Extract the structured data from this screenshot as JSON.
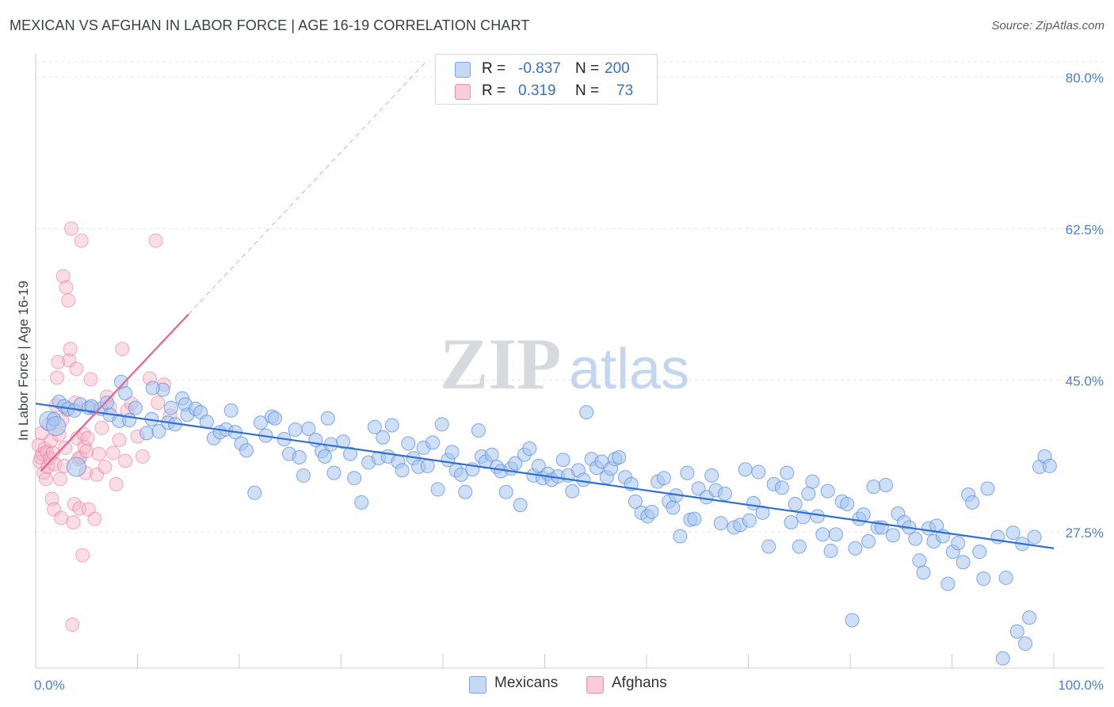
{
  "header": {
    "title": "MEXICAN VS AFGHAN IN LABOR FORCE | AGE 16-19 CORRELATION CHART",
    "source": "Source: ZipAtlas.com"
  },
  "watermark": {
    "zip": "ZIP",
    "atlas": "atlas"
  },
  "legend": {
    "rows": [
      {
        "r_label": "R =",
        "r_value": "-0.837",
        "n_label": "N =",
        "n_value": "200",
        "color": "#a8c4ee"
      },
      {
        "r_label": "R =",
        "r_value": "0.319",
        "n_label": "N =",
        "n_value": "73",
        "color": "#f5b6c8"
      }
    ]
  },
  "bottom_legend": [
    {
      "label": "Mexicans",
      "color": "#a8c4ee"
    },
    {
      "label": "Afghans",
      "color": "#f5b6c8"
    }
  ],
  "chart_data": {
    "type": "scatter",
    "title": "MEXICAN VS AFGHAN IN LABOR FORCE | AGE 16-19 CORRELATION CHART",
    "xlabel": "",
    "ylabel": "In Labor Force | Age 16-19",
    "xlim": [
      0,
      100
    ],
    "ylim": [
      10,
      85
    ],
    "x_tick_labels": [
      "0.0%",
      "100.0%"
    ],
    "y_ticks": [
      27.5,
      45.0,
      62.5,
      80.0
    ],
    "y_tick_labels": [
      "27.5%",
      "45.0%",
      "62.5%",
      "80.0%"
    ],
    "grid": "horizontal dashed",
    "legend_position": "top-center",
    "colors": {
      "mexicans": "#5b8fe0",
      "mexicans_fill": "#a8c4ee",
      "afghans": "#ec6d97",
      "afghans_fill": "#f5b6c8"
    },
    "series": [
      {
        "name": "Mexicans",
        "trend": {
          "x": [
            0,
            100
          ],
          "y": [
            42.3,
            25.6
          ]
        },
        "points": [
          [
            1.3,
            40.3
          ],
          [
            1.8,
            40.5
          ],
          [
            2.3,
            42.5
          ],
          [
            2.8,
            42.0
          ],
          [
            3.2,
            41.7
          ],
          [
            3.8,
            41.5
          ],
          [
            4.4,
            42.2
          ],
          [
            5.2,
            41.8
          ],
          [
            6.4,
            41.7
          ],
          [
            7.0,
            42.4
          ],
          [
            7.3,
            41.0
          ],
          [
            8.2,
            40.3
          ],
          [
            8.4,
            44.8
          ],
          [
            8.8,
            43.5
          ],
          [
            9.2,
            40.4
          ],
          [
            9.8,
            41.8
          ],
          [
            10.9,
            38.9
          ],
          [
            11.4,
            40.5
          ],
          [
            12.1,
            39.1
          ],
          [
            12.5,
            43.9
          ],
          [
            13.0,
            40.1
          ],
          [
            13.3,
            41.8
          ],
          [
            13.7,
            39.9
          ],
          [
            14.4,
            42.9
          ],
          [
            14.7,
            42.2
          ],
          [
            14.9,
            41.0
          ],
          [
            15.7,
            41.7
          ],
          [
            16.2,
            41.3
          ],
          [
            16.8,
            40.2
          ],
          [
            17.5,
            38.3
          ],
          [
            18.1,
            39.0
          ],
          [
            18.7,
            39.3
          ],
          [
            19.2,
            41.5
          ],
          [
            19.6,
            39.0
          ],
          [
            20.2,
            37.7
          ],
          [
            20.7,
            36.9
          ],
          [
            21.5,
            32.0
          ],
          [
            22.1,
            40.1
          ],
          [
            22.6,
            38.6
          ],
          [
            23.2,
            40.8
          ],
          [
            23.5,
            40.6
          ],
          [
            24.4,
            38.2
          ],
          [
            24.9,
            36.5
          ],
          [
            25.5,
            39.3
          ],
          [
            25.9,
            36.1
          ],
          [
            26.3,
            34.0
          ],
          [
            26.8,
            39.4
          ],
          [
            27.5,
            38.1
          ],
          [
            28.1,
            36.8
          ],
          [
            28.4,
            36.2
          ],
          [
            28.7,
            40.6
          ],
          [
            29.0,
            37.6
          ],
          [
            29.3,
            34.3
          ],
          [
            30.2,
            37.9
          ],
          [
            30.9,
            36.5
          ],
          [
            31.3,
            33.7
          ],
          [
            32.0,
            30.9
          ],
          [
            32.7,
            35.5
          ],
          [
            33.3,
            39.6
          ],
          [
            33.7,
            36.0
          ],
          [
            34.1,
            38.4
          ],
          [
            34.6,
            36.2
          ],
          [
            35.0,
            39.8
          ],
          [
            35.6,
            35.6
          ],
          [
            36.0,
            34.6
          ],
          [
            36.6,
            37.7
          ],
          [
            37.1,
            36.0
          ],
          [
            37.6,
            35.0
          ],
          [
            38.1,
            37.2
          ],
          [
            38.5,
            35.1
          ],
          [
            39.0,
            37.8
          ],
          [
            39.5,
            32.4
          ],
          [
            39.9,
            39.9
          ],
          [
            40.5,
            35.8
          ],
          [
            40.9,
            36.7
          ],
          [
            41.3,
            34.6
          ],
          [
            41.8,
            34.1
          ],
          [
            42.2,
            32.1
          ],
          [
            42.9,
            34.7
          ],
          [
            43.5,
            39.2
          ],
          [
            43.8,
            36.2
          ],
          [
            44.2,
            35.6
          ],
          [
            44.8,
            36.4
          ],
          [
            45.3,
            35.0
          ],
          [
            45.7,
            34.5
          ],
          [
            46.2,
            32.1
          ],
          [
            46.7,
            34.8
          ],
          [
            47.1,
            35.4
          ],
          [
            47.6,
            30.6
          ],
          [
            48.0,
            36.4
          ],
          [
            48.5,
            37.1
          ],
          [
            48.9,
            34.0
          ],
          [
            49.4,
            35.1
          ],
          [
            49.8,
            33.7
          ],
          [
            50.3,
            34.2
          ],
          [
            50.7,
            33.5
          ],
          [
            51.3,
            33.9
          ],
          [
            51.8,
            35.8
          ],
          [
            52.3,
            34.0
          ],
          [
            52.7,
            32.2
          ],
          [
            53.3,
            34.6
          ],
          [
            53.8,
            33.5
          ],
          [
            54.1,
            41.3
          ],
          [
            54.6,
            35.9
          ],
          [
            55.1,
            34.9
          ],
          [
            55.6,
            35.6
          ],
          [
            56.1,
            33.8
          ],
          [
            56.5,
            34.8
          ],
          [
            56.9,
            35.9
          ],
          [
            57.3,
            36.1
          ],
          [
            57.9,
            33.8
          ],
          [
            58.5,
            33.0
          ],
          [
            58.9,
            31.0
          ],
          [
            59.5,
            29.7
          ],
          [
            60.1,
            29.3
          ],
          [
            60.5,
            29.8
          ],
          [
            61.1,
            33.3
          ],
          [
            61.7,
            33.7
          ],
          [
            62.2,
            31.0
          ],
          [
            62.6,
            30.3
          ],
          [
            62.9,
            31.7
          ],
          [
            63.3,
            27.0
          ],
          [
            64.0,
            34.3
          ],
          [
            64.3,
            28.9
          ],
          [
            64.7,
            29.0
          ],
          [
            65.1,
            32.5
          ],
          [
            65.9,
            31.5
          ],
          [
            66.4,
            34.0
          ],
          [
            66.8,
            32.3
          ],
          [
            67.3,
            28.5
          ],
          [
            67.7,
            31.9
          ],
          [
            68.6,
            28.0
          ],
          [
            69.2,
            28.3
          ],
          [
            69.7,
            34.7
          ],
          [
            70.1,
            28.8
          ],
          [
            70.5,
            30.8
          ],
          [
            71.0,
            34.4
          ],
          [
            71.4,
            29.7
          ],
          [
            72.0,
            25.8
          ],
          [
            72.5,
            33.0
          ],
          [
            73.3,
            32.6
          ],
          [
            73.8,
            34.3
          ],
          [
            74.2,
            28.6
          ],
          [
            74.6,
            30.7
          ],
          [
            75.0,
            25.8
          ],
          [
            75.4,
            29.2
          ],
          [
            75.9,
            31.9
          ],
          [
            76.3,
            33.3
          ],
          [
            76.8,
            29.3
          ],
          [
            77.3,
            27.2
          ],
          [
            77.8,
            32.2
          ],
          [
            78.1,
            25.3
          ],
          [
            78.6,
            27.2
          ],
          [
            79.2,
            31.0
          ],
          [
            79.7,
            30.7
          ],
          [
            80.2,
            17.3
          ],
          [
            80.5,
            25.6
          ],
          [
            80.9,
            29.0
          ],
          [
            81.3,
            29.5
          ],
          [
            81.8,
            26.4
          ],
          [
            82.3,
            32.7
          ],
          [
            82.7,
            28.0
          ],
          [
            83.1,
            28.0
          ],
          [
            83.5,
            32.9
          ],
          [
            84.2,
            27.1
          ],
          [
            84.7,
            29.6
          ],
          [
            85.3,
            28.6
          ],
          [
            85.8,
            28.0
          ],
          [
            86.4,
            26.7
          ],
          [
            86.8,
            24.2
          ],
          [
            87.2,
            22.8
          ],
          [
            87.7,
            27.9
          ],
          [
            88.2,
            26.4
          ],
          [
            88.5,
            28.2
          ],
          [
            89.1,
            27.0
          ],
          [
            89.6,
            21.5
          ],
          [
            90.1,
            25.2
          ],
          [
            90.6,
            26.2
          ],
          [
            91.1,
            24.0
          ],
          [
            91.6,
            31.8
          ],
          [
            92.0,
            30.9
          ],
          [
            92.7,
            25.2
          ],
          [
            93.1,
            22.1
          ],
          [
            93.5,
            32.5
          ],
          [
            94.5,
            26.9
          ],
          [
            95.0,
            12.9
          ],
          [
            95.3,
            22.2
          ],
          [
            96.0,
            27.4
          ],
          [
            96.4,
            16.0
          ],
          [
            96.9,
            26.1
          ],
          [
            97.2,
            14.6
          ],
          [
            97.6,
            17.6
          ],
          [
            98.1,
            26.9
          ],
          [
            98.6,
            35.0
          ],
          [
            99.1,
            36.2
          ],
          [
            99.6,
            35.1
          ],
          [
            4.0,
            35.0
          ],
          [
            2.0,
            39.7
          ],
          [
            11.5,
            44.1
          ],
          [
            5.5,
            42.0
          ]
        ]
      },
      {
        "name": "Afghans",
        "trend": {
          "x": [
            0.5,
            15.0
          ],
          "y": [
            34.5,
            52.6
          ]
        },
        "points": [
          [
            0.3,
            37.5
          ],
          [
            0.4,
            35.6
          ],
          [
            0.5,
            36.1
          ],
          [
            0.6,
            38.9
          ],
          [
            0.7,
            36.5
          ],
          [
            0.8,
            34.3
          ],
          [
            0.9,
            37.1
          ],
          [
            1.0,
            33.6
          ],
          [
            1.1,
            36.7
          ],
          [
            1.2,
            35.0
          ],
          [
            1.3,
            39.9
          ],
          [
            1.4,
            36.0
          ],
          [
            1.5,
            38.0
          ],
          [
            1.6,
            31.3
          ],
          [
            1.7,
            36.6
          ],
          [
            1.8,
            30.1
          ],
          [
            1.9,
            35.3
          ],
          [
            2.0,
            42.1
          ],
          [
            2.1,
            45.3
          ],
          [
            2.2,
            47.1
          ],
          [
            2.3,
            38.7
          ],
          [
            2.4,
            33.6
          ],
          [
            2.5,
            29.1
          ],
          [
            2.6,
            40.4
          ],
          [
            2.7,
            57.0
          ],
          [
            2.8,
            35.1
          ],
          [
            2.9,
            37.2
          ],
          [
            3.0,
            55.7
          ],
          [
            3.1,
            41.6
          ],
          [
            3.2,
            54.2
          ],
          [
            3.3,
            47.3
          ],
          [
            3.4,
            48.6
          ],
          [
            3.5,
            62.5
          ],
          [
            3.6,
            16.8
          ],
          [
            3.7,
            28.6
          ],
          [
            3.8,
            30.7
          ],
          [
            3.9,
            42.4
          ],
          [
            4.0,
            46.3
          ],
          [
            4.1,
            38.3
          ],
          [
            4.2,
            35.9
          ],
          [
            4.3,
            30.2
          ],
          [
            4.4,
            36.1
          ],
          [
            4.5,
            61.1
          ],
          [
            4.6,
            24.8
          ],
          [
            4.7,
            38.8
          ],
          [
            4.8,
            37.3
          ],
          [
            4.9,
            34.3
          ],
          [
            5.0,
            36.8
          ],
          [
            5.1,
            38.3
          ],
          [
            5.2,
            30.1
          ],
          [
            5.4,
            45.1
          ],
          [
            5.6,
            41.8
          ],
          [
            5.8,
            29.0
          ],
          [
            6.0,
            34.1
          ],
          [
            6.2,
            36.5
          ],
          [
            6.5,
            39.5
          ],
          [
            6.8,
            35.0
          ],
          [
            7.0,
            43.1
          ],
          [
            7.3,
            41.9
          ],
          [
            7.6,
            36.6
          ],
          [
            7.9,
            33.0
          ],
          [
            8.2,
            38.1
          ],
          [
            8.5,
            48.6
          ],
          [
            8.8,
            35.7
          ],
          [
            9.0,
            41.5
          ],
          [
            9.4,
            42.3
          ],
          [
            10.0,
            38.5
          ],
          [
            10.5,
            36.2
          ],
          [
            11.2,
            45.2
          ],
          [
            12.0,
            42.4
          ],
          [
            12.6,
            44.5
          ],
          [
            13.2,
            40.9
          ],
          [
            11.8,
            61.1
          ]
        ]
      }
    ]
  }
}
